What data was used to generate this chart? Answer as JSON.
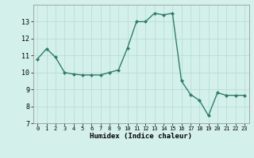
{
  "x": [
    0,
    1,
    2,
    3,
    4,
    5,
    6,
    7,
    8,
    9,
    10,
    11,
    12,
    13,
    14,
    15,
    16,
    17,
    18,
    19,
    20,
    21,
    22,
    23
  ],
  "y": [
    10.8,
    11.4,
    10.9,
    10.0,
    9.9,
    9.85,
    9.85,
    9.85,
    10.0,
    10.15,
    11.45,
    13.0,
    13.0,
    13.5,
    13.4,
    13.5,
    9.5,
    8.7,
    8.35,
    7.45,
    8.8,
    8.65,
    8.65,
    8.65
  ],
  "xlabel": "Humidex (Indice chaleur)",
  "ylim": [
    7,
    14
  ],
  "xlim": [
    -0.5,
    23.5
  ],
  "yticks": [
    7,
    8,
    9,
    10,
    11,
    12,
    13
  ],
  "xticks": [
    0,
    1,
    2,
    3,
    4,
    5,
    6,
    7,
    8,
    9,
    10,
    11,
    12,
    13,
    14,
    15,
    16,
    17,
    18,
    19,
    20,
    21,
    22,
    23
  ],
  "line_color": "#2e7d6e",
  "marker_color": "#2e7d6e",
  "bg_color": "#d4f0eb",
  "grid_color_major": "#b8ddd8",
  "grid_color_minor": "#c8eae5"
}
